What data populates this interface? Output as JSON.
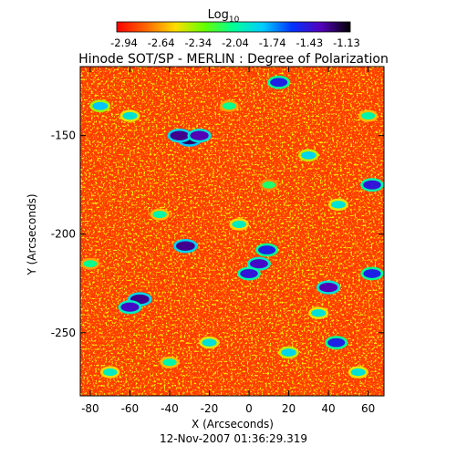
{
  "colorbar": {
    "label_base": "Log",
    "label_sub": "10",
    "ticks": [
      "-2.94",
      "-2.64",
      "-2.34",
      "-2.04",
      "-1.74",
      "-1.43",
      "-1.13"
    ],
    "colors": [
      "#ff0000",
      "#ff6600",
      "#ffdd00",
      "#66ff00",
      "#00ff99",
      "#00ccff",
      "#0033ff",
      "#5500bb",
      "#000000"
    ]
  },
  "title": "Hinode SOT/SP - MERLIN : Degree of Polarization",
  "timestamp": "12-Nov-2007 01:36:29.319",
  "chart_data": {
    "type": "heatmap",
    "title": "Hinode SOT/SP - MERLIN : Degree of Polarization",
    "xlabel": "X (Arcseconds)",
    "ylabel": "Y (Arcseconds)",
    "xlim": [
      -85,
      68
    ],
    "ylim": [
      -282,
      -115
    ],
    "x_ticks": [
      -80,
      -60,
      -40,
      -20,
      0,
      20,
      40,
      60
    ],
    "y_ticks": [
      -150,
      -200,
      -250
    ],
    "color_scale": "Log10",
    "value_range": [
      -2.94,
      -1.13
    ],
    "background_level": -2.84,
    "features": [
      {
        "x": -30,
        "y": -152,
        "value": -1.25
      },
      {
        "x": -35,
        "y": -150,
        "value": -1.3
      },
      {
        "x": -25,
        "y": -150,
        "value": -1.35
      },
      {
        "x": -55,
        "y": -233,
        "value": -1.3
      },
      {
        "x": -60,
        "y": -237,
        "value": -1.4
      },
      {
        "x": -32,
        "y": -206,
        "value": -1.3
      },
      {
        "x": 5,
        "y": -215,
        "value": -1.4
      },
      {
        "x": 0,
        "y": -220,
        "value": -1.45
      },
      {
        "x": 9,
        "y": -208,
        "value": -1.5
      },
      {
        "x": 40,
        "y": -227,
        "value": -1.35
      },
      {
        "x": 62,
        "y": -175,
        "value": -1.45
      },
      {
        "x": 62,
        "y": -220,
        "value": -1.5
      },
      {
        "x": 15,
        "y": -123,
        "value": -1.5
      },
      {
        "x": 44,
        "y": -255,
        "value": -1.5
      },
      {
        "x": -75,
        "y": -135,
        "value": -1.8
      },
      {
        "x": -60,
        "y": -140,
        "value": -1.9
      },
      {
        "x": 30,
        "y": -160,
        "value": -1.85
      },
      {
        "x": 45,
        "y": -185,
        "value": -1.9
      },
      {
        "x": -5,
        "y": -195,
        "value": -1.95
      },
      {
        "x": 20,
        "y": -260,
        "value": -1.85
      },
      {
        "x": -20,
        "y": -255,
        "value": -1.9
      },
      {
        "x": 55,
        "y": -270,
        "value": -1.9
      },
      {
        "x": -70,
        "y": -270,
        "value": -1.95
      },
      {
        "x": -45,
        "y": -190,
        "value": -2.0
      },
      {
        "x": 60,
        "y": -140,
        "value": -2.0
      },
      {
        "x": -10,
        "y": -135,
        "value": -2.05
      },
      {
        "x": 35,
        "y": -240,
        "value": -1.9
      },
      {
        "x": -40,
        "y": -265,
        "value": -2.0
      },
      {
        "x": 10,
        "y": -175,
        "value": -2.1
      },
      {
        "x": -80,
        "y": -215,
        "value": -2.05
      }
    ]
  }
}
